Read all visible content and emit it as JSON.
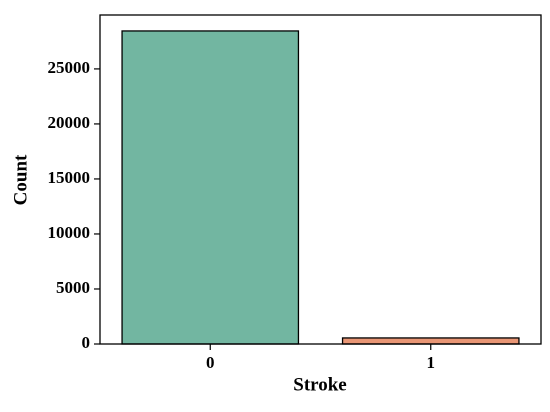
{
  "chart_data": {
    "type": "bar",
    "x_label": "Stroke",
    "y_label": "Count",
    "categories": [
      "0",
      "1"
    ],
    "values": [
      28450,
      550
    ],
    "colors": [
      "#72b6a1",
      "#e99675"
    ],
    "ylim": [
      0,
      29900
    ],
    "yticks": [
      0,
      5000,
      10000,
      15000,
      20000,
      25000
    ],
    "grid": false
  }
}
